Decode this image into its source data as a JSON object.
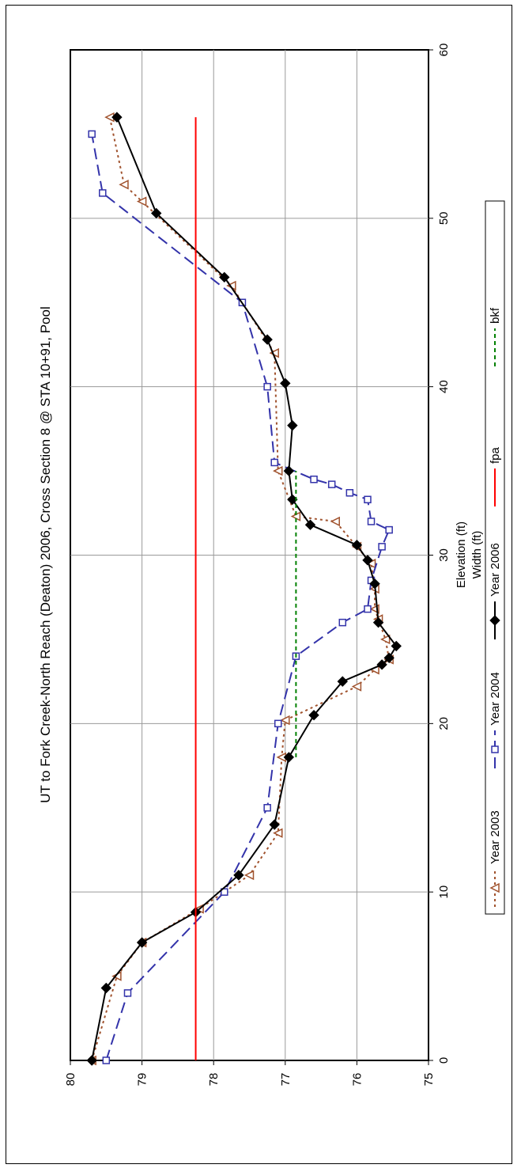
{
  "chart_data": {
    "type": "line",
    "title": "UT to Fork Creek-North Reach (Deaton) 2006, Cross Section 8 @ STA 10+91, Pool",
    "xlabel": "Width (ft)",
    "ylabel": "Elevation (ft)",
    "xlim": [
      0,
      60
    ],
    "ylim": [
      75,
      80
    ],
    "xticks": [
      "0",
      "10",
      "20",
      "30",
      "40",
      "50",
      "60"
    ],
    "yticks": [
      "75",
      "76",
      "77",
      "78",
      "79",
      "80"
    ],
    "grid": true,
    "legend_position": "bottom",
    "series": [
      {
        "name": "Year 2003",
        "color": "#c0504d",
        "stroke": "#a0522d",
        "dash": "3,4",
        "marker": "triangle-open",
        "x": [
          0,
          5,
          7,
          9,
          11,
          13.5,
          18,
          20.2,
          22.2,
          23.2,
          23.8,
          25,
          26.2,
          26.8,
          28,
          29.5,
          30.5,
          32,
          32.3,
          35,
          42,
          46,
          51,
          52,
          56
        ],
        "y": [
          79.7,
          79.35,
          79.0,
          78.2,
          77.5,
          77.1,
          77.05,
          77.0,
          76.0,
          75.75,
          75.55,
          75.6,
          75.7,
          75.75,
          75.75,
          75.8,
          76.0,
          76.3,
          76.85,
          77.1,
          77.15,
          77.75,
          79.0,
          79.25,
          79.45
        ]
      },
      {
        "name": "Year 2004",
        "color": "#3333aa",
        "dash": "14,7",
        "marker": "square-open",
        "x": [
          0,
          4,
          10,
          15,
          20,
          24,
          26,
          26.8,
          28.5,
          30.5,
          31.5,
          32,
          33.3,
          33.7,
          34.2,
          34.5,
          35.5,
          40,
          45,
          51.5,
          55
        ],
        "y": [
          79.5,
          79.2,
          77.85,
          77.25,
          77.1,
          76.85,
          76.2,
          75.85,
          75.8,
          75.65,
          75.55,
          75.8,
          75.85,
          76.1,
          76.35,
          76.6,
          77.15,
          77.25,
          77.6,
          79.55,
          79.7
        ]
      },
      {
        "name": "Year 2006",
        "color": "#000000",
        "dash": "",
        "marker": "diamond-filled",
        "x": [
          0,
          4.3,
          7,
          8.8,
          11,
          14,
          18,
          20.5,
          22.5,
          23.5,
          23.9,
          24.6,
          26,
          28.3,
          29.7,
          30.6,
          31.8,
          33.3,
          35,
          37.7,
          40.2,
          42.8,
          46.5,
          50.3,
          56
        ],
        "y": [
          79.7,
          79.5,
          79.0,
          78.25,
          77.65,
          77.15,
          76.95,
          76.6,
          76.2,
          75.65,
          75.55,
          75.45,
          75.7,
          75.75,
          75.85,
          76.0,
          76.65,
          76.9,
          76.95,
          76.9,
          77.0,
          77.25,
          77.85,
          78.8,
          79.35
        ]
      },
      {
        "name": "fpa",
        "color": "#ff0000",
        "dash": "",
        "marker": "none",
        "x": [
          0,
          56
        ],
        "y": [
          78.25,
          78.25
        ]
      },
      {
        "name": "bkf",
        "color": "#008000",
        "dash": "5,4",
        "marker": "none",
        "x": [
          18,
          35
        ],
        "y": [
          76.85,
          76.85
        ]
      }
    ]
  }
}
